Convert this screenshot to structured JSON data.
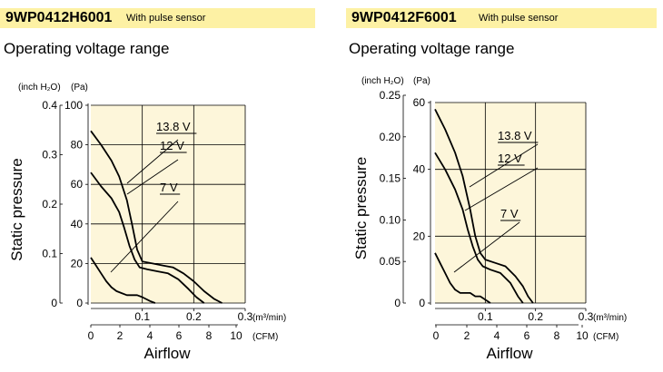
{
  "chart_data": [
    {
      "type": "line",
      "model": "9WP0412H6001",
      "tag": "With pulse sensor",
      "title": "Operating voltage range",
      "ylabel": "Static pressure",
      "xlabel": "Airflow",
      "y_units_left": "(inch H₂O)",
      "y_units_right": "(Pa)",
      "x_unit_top": "(m³/min)",
      "x_unit_bottom": "(CFM)",
      "xlim": [
        0,
        0.3
      ],
      "ylim_pa": [
        0,
        100
      ],
      "pa_ticks": [
        "0",
        "20",
        "40",
        "60",
        "80",
        "100"
      ],
      "inch_ticks": [
        "0",
        "0.1",
        "0.2",
        "0.3",
        "0.4"
      ],
      "m3_ticks": [
        "0.1",
        "0.2",
        "0.3"
      ],
      "cfm_ticks": [
        "0",
        "2",
        "4",
        "6",
        "8",
        "10"
      ],
      "series": [
        {
          "name": "13.8 V",
          "x": [
            0,
            0.02,
            0.04,
            0.055,
            0.07,
            0.08,
            0.09,
            0.1,
            0.12,
            0.14,
            0.16,
            0.18,
            0.2,
            0.22,
            0.24,
            0.255
          ],
          "y": [
            87,
            80,
            72,
            64,
            52,
            40,
            27,
            21,
            20,
            19,
            18,
            15,
            11,
            6,
            2,
            0
          ]
        },
        {
          "name": "12 V",
          "x": [
            0,
            0.02,
            0.04,
            0.055,
            0.065,
            0.075,
            0.085,
            0.095,
            0.11,
            0.13,
            0.15,
            0.17,
            0.19,
            0.205,
            0.22
          ],
          "y": [
            66,
            59,
            53,
            46,
            38,
            29,
            22,
            18,
            17,
            16,
            15,
            12,
            7,
            3,
            0
          ]
        },
        {
          "name": "7 V",
          "x": [
            0,
            0.01,
            0.02,
            0.03,
            0.04,
            0.05,
            0.06,
            0.07,
            0.08,
            0.09,
            0.1,
            0.115,
            0.125
          ],
          "y": [
            23,
            19,
            15,
            11,
            8,
            6,
            5,
            4,
            4,
            4,
            3,
            1,
            0
          ]
        }
      ]
    },
    {
      "type": "line",
      "model": "9WP0412F6001",
      "tag": "With pulse sensor",
      "title": "Operating voltage range",
      "ylabel": "Static pressure",
      "xlabel": "Airflow",
      "y_units_left": "(inch H₂O)",
      "y_units_right": "(Pa)",
      "x_unit_top": "(m³/min)",
      "x_unit_bottom": "(CFM)",
      "xlim": [
        0,
        0.3
      ],
      "ylim_pa": [
        0,
        60
      ],
      "pa_ticks": [
        "0",
        "20",
        "40",
        "60"
      ],
      "inch_ticks": [
        "0",
        "0.05",
        "0.10",
        "0.15",
        "0.20",
        "0.25"
      ],
      "m3_ticks": [
        "0.1",
        "0.2",
        "0.3"
      ],
      "cfm_ticks": [
        "0",
        "2",
        "4",
        "6",
        "8",
        "10"
      ],
      "series": [
        {
          "name": "13.8 V",
          "x": [
            0,
            0.02,
            0.04,
            0.055,
            0.07,
            0.08,
            0.09,
            0.1,
            0.12,
            0.14,
            0.16,
            0.175,
            0.185,
            0.195
          ],
          "y": [
            58,
            52,
            45,
            38,
            28,
            20,
            15,
            13,
            12,
            11,
            8,
            5,
            2,
            0
          ]
        },
        {
          "name": "12 V",
          "x": [
            0,
            0.02,
            0.04,
            0.055,
            0.065,
            0.075,
            0.085,
            0.095,
            0.11,
            0.13,
            0.15,
            0.165,
            0.175
          ],
          "y": [
            45,
            40,
            34,
            28,
            22,
            17,
            13,
            11,
            10,
            9,
            6,
            2,
            0
          ]
        },
        {
          "name": "7 V",
          "x": [
            0,
            0.01,
            0.02,
            0.03,
            0.04,
            0.05,
            0.06,
            0.07,
            0.08,
            0.09,
            0.1,
            0.11
          ],
          "y": [
            15,
            12,
            9,
            6,
            4,
            3,
            3,
            3,
            2,
            2,
            1,
            0
          ]
        }
      ]
    }
  ]
}
